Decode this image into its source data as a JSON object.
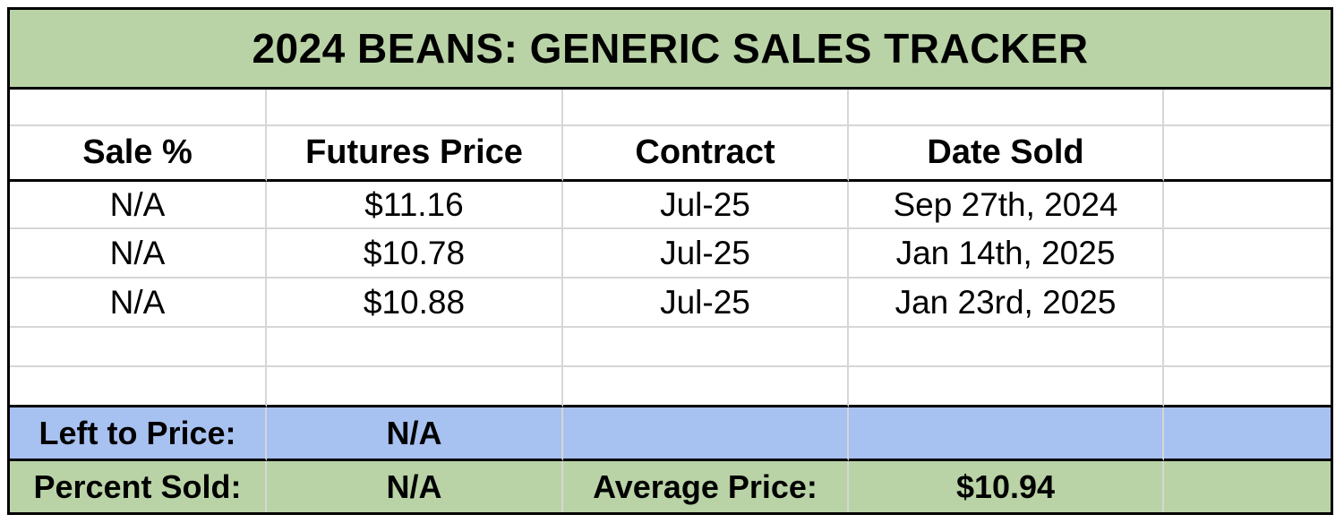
{
  "title": "2024 BEANS: GENERIC SALES TRACKER",
  "colors": {
    "title_and_footer_green": "#b9d3a6",
    "summary_blue": "#a7c1f0",
    "grid_line": "#d6d6d6",
    "border": "#000000"
  },
  "table": {
    "columns": [
      "Sale %",
      "Futures Price",
      "Contract",
      "Date Sold",
      ""
    ],
    "rows": [
      {
        "sale_pct": "N/A",
        "futures_price": "$11.16",
        "contract": "Jul-25",
        "date_sold": "Sep 27th, 2024"
      },
      {
        "sale_pct": "N/A",
        "futures_price": "$10.78",
        "contract": "Jul-25",
        "date_sold": "Jan 14th, 2025"
      },
      {
        "sale_pct": "N/A",
        "futures_price": "$10.88",
        "contract": "Jul-25",
        "date_sold": "Jan 23rd, 2025"
      }
    ]
  },
  "summary": {
    "left_to_price": {
      "label": "Left to Price:",
      "value": "N/A"
    },
    "percent_sold": {
      "label": "Percent Sold:",
      "value": "N/A"
    },
    "average_price": {
      "label": "Average Price:",
      "value": "$10.94"
    }
  }
}
